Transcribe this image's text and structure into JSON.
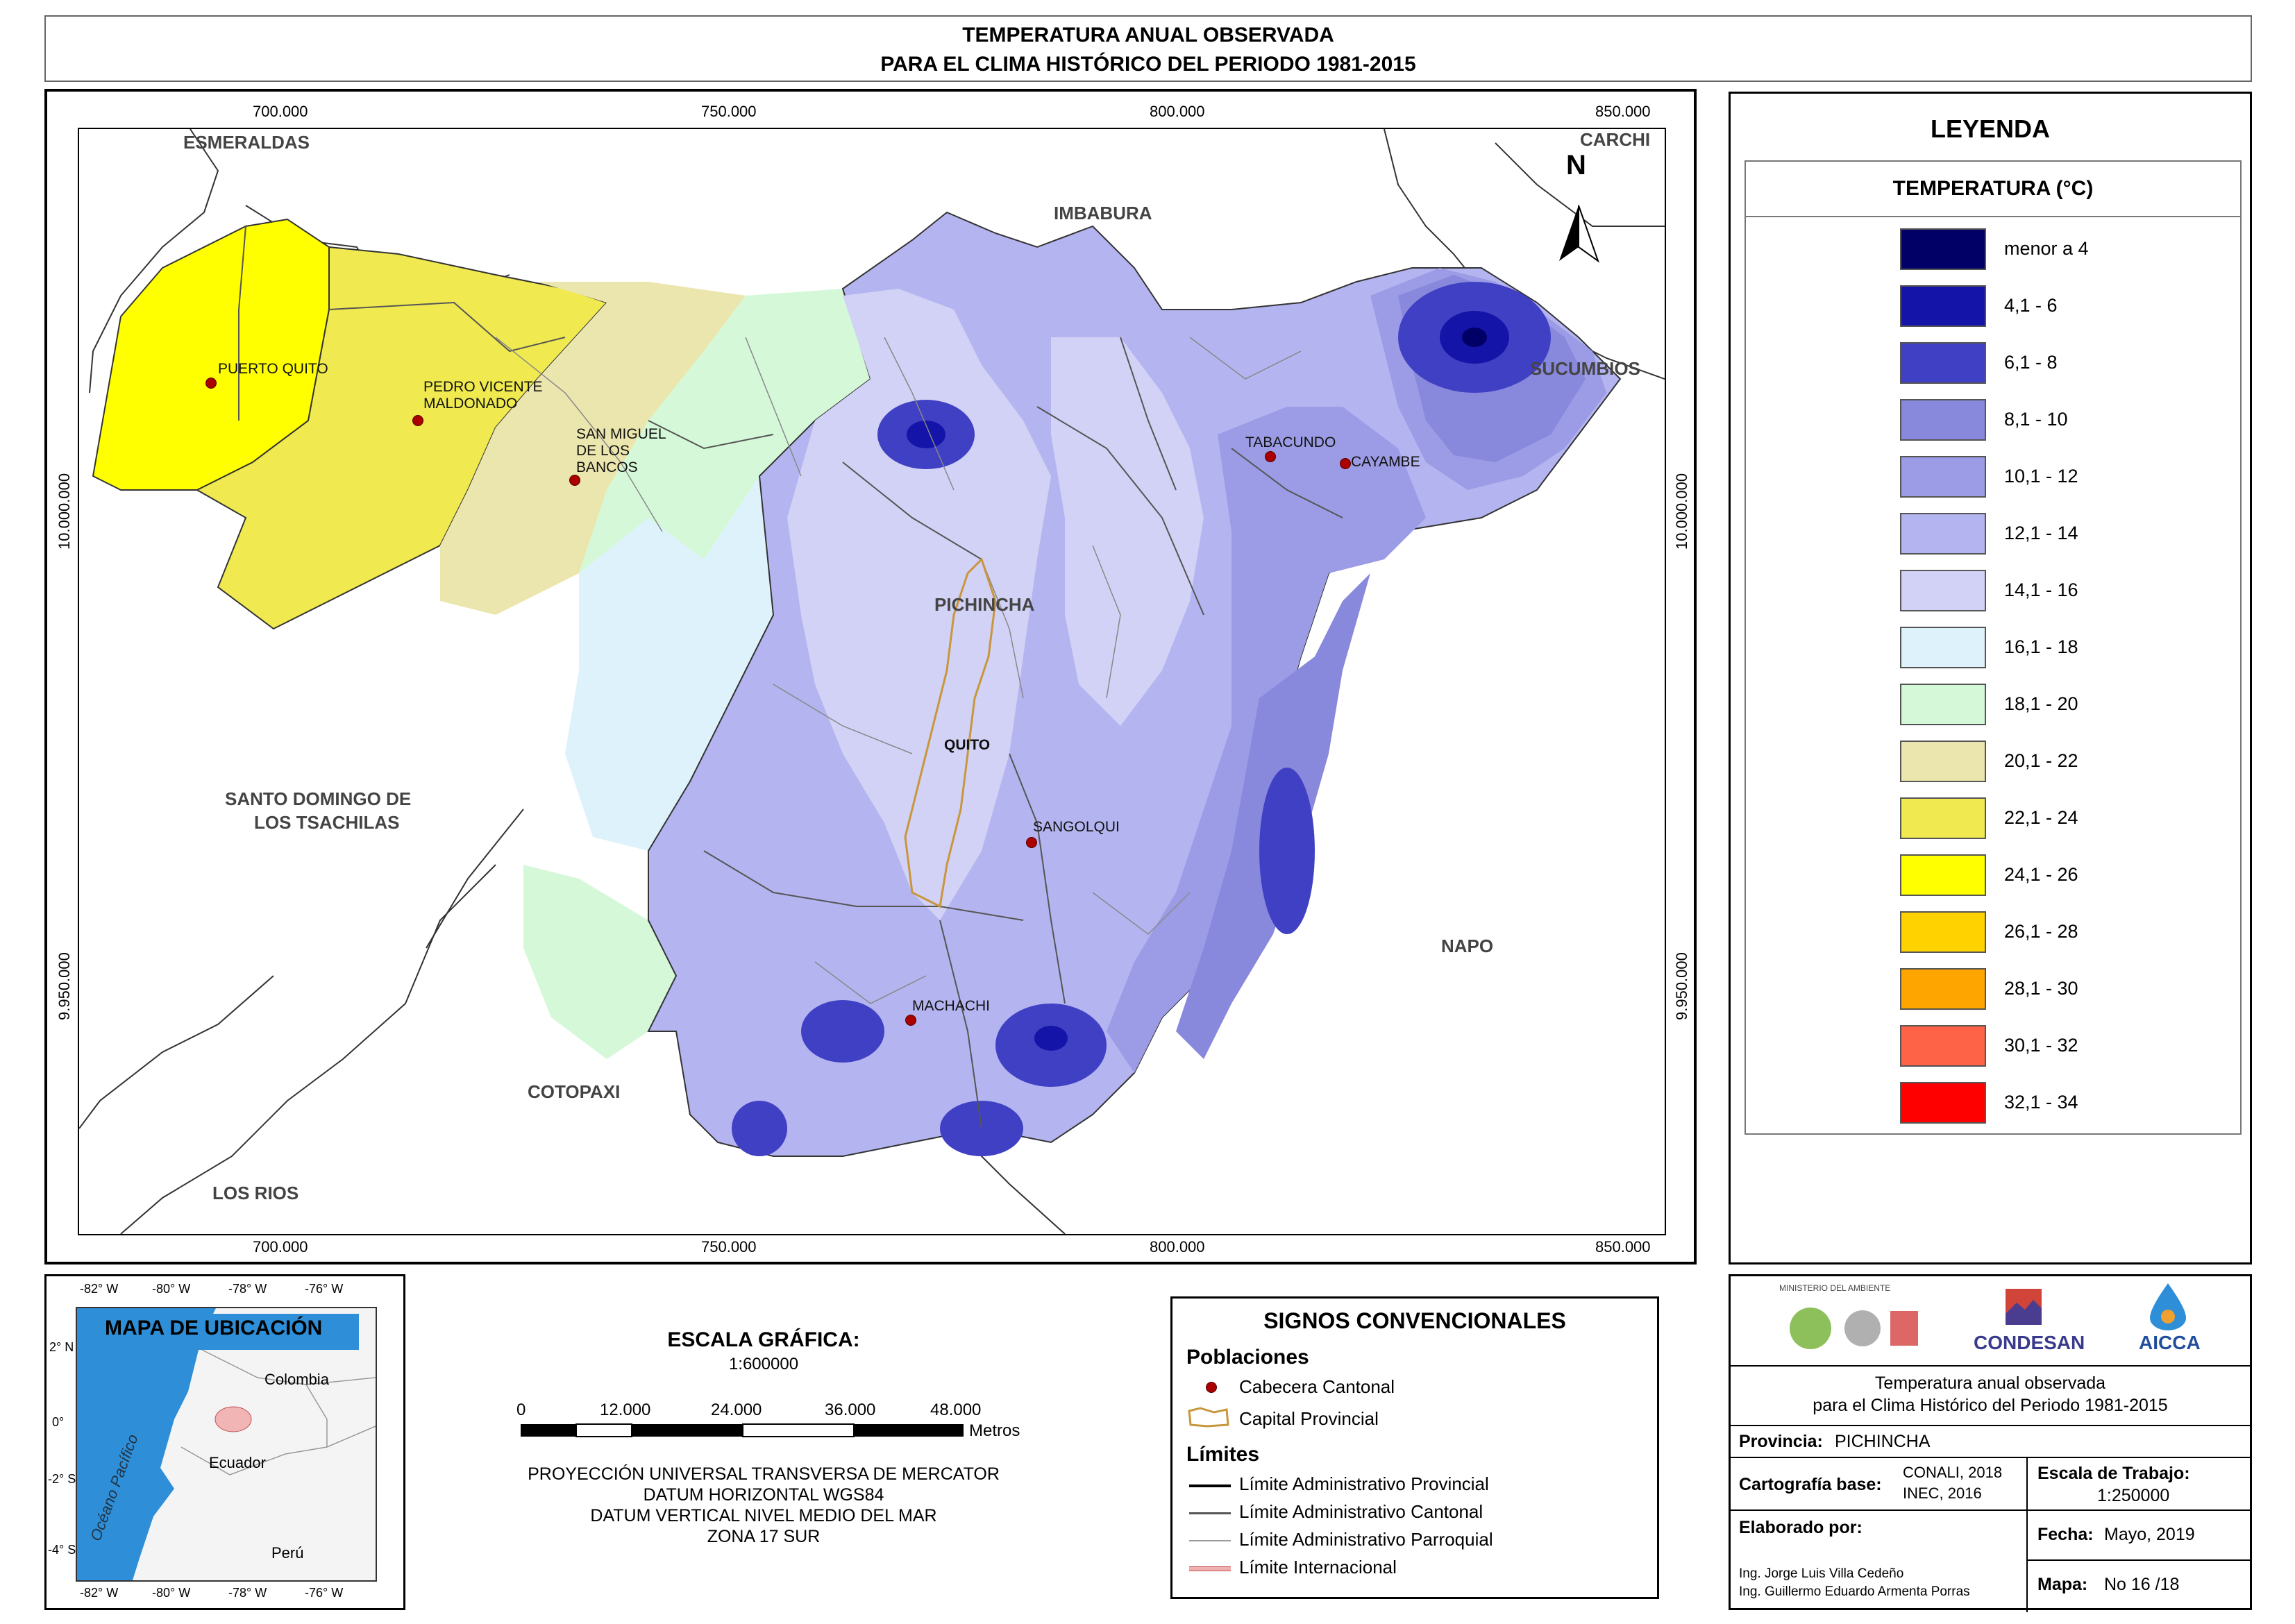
{
  "title": {
    "line1": "TEMPERATURA ANUAL OBSERVADA",
    "line2": "PARA EL CLIMA HISTÓRICO DEL PERIODO 1981-2015"
  },
  "map": {
    "coords_top": [
      "700.000",
      "750.000",
      "800.000",
      "850.000"
    ],
    "coords_bottom": [
      "700.000",
      "750.000",
      "800.000",
      "850.000"
    ],
    "coords_left": [
      "10.000.000",
      "9.950.000"
    ],
    "coords_right": [
      "10.000.000",
      "9.950.000"
    ],
    "north_label": "N",
    "regions": {
      "esmeraldas": "ESMERALDAS",
      "carchi": "CARCHI",
      "imbabura": "IMBABURA",
      "sucumbios": "SUCUMBIOS",
      "pichincha": "PICHINCHA",
      "santo_domingo_1": "SANTO DOMINGO DE",
      "santo_domingo_2": "LOS TSACHILAS",
      "napo": "NAPO",
      "cotopaxi": "COTOPAXI",
      "los_rios": "LOS RIOS"
    },
    "towns": {
      "puerto_quito": "PUERTO QUITO",
      "pedro_vicente_1": "PEDRO VICENTE",
      "pedro_vicente_2": "MALDONADO",
      "san_miguel_1": "SAN MIGUEL",
      "san_miguel_2": "DE LOS",
      "san_miguel_3": "BANCOS",
      "tabacundo": "TABACUNDO",
      "cayambe": "CAYAMBE",
      "quito": "QUITO",
      "sangolqui": "SANGOLQUI",
      "machachi": "MACHACHI"
    }
  },
  "legend": {
    "title": "LEYENDA",
    "subtitle": "TEMPERATURA (°C)",
    "items": [
      {
        "label": "menor a 4",
        "color": "#000066"
      },
      {
        "label": "4,1 - 6",
        "color": "#1414a8"
      },
      {
        "label": "6,1 - 8",
        "color": "#4040c4"
      },
      {
        "label": "8,1 - 10",
        "color": "#8888dc"
      },
      {
        "label": "10,1 - 12",
        "color": "#9c9ce6"
      },
      {
        "label": "12,1 - 14",
        "color": "#b4b4f0"
      },
      {
        "label": "14,1 - 16",
        "color": "#d2d2f6"
      },
      {
        "label": "16,1 - 18",
        "color": "#ddf2fa"
      },
      {
        "label": "18,1 - 20",
        "color": "#d4f8d8"
      },
      {
        "label": "20,1 - 22",
        "color": "#ebe6ad"
      },
      {
        "label": "22,1 - 24",
        "color": "#f0ea50"
      },
      {
        "label": "24,1 - 26",
        "color": "#ffff00"
      },
      {
        "label": "26,1 - 28",
        "color": "#ffd200"
      },
      {
        "label": "28,1 - 30",
        "color": "#ffa500"
      },
      {
        "label": "30,1 - 32",
        "color": "#ff6347"
      },
      {
        "label": "32,1 - 34",
        "color": "#ff0000"
      }
    ]
  },
  "location_map": {
    "title": "MAPA DE UBICACIÓN",
    "top_lon": [
      "-82° W",
      "-80° W",
      "-78° W",
      "-76° W"
    ],
    "bottom_lon": [
      "-82° W",
      "-80° W",
      "-78° W",
      "-76° W"
    ],
    "lat": [
      "2° N",
      "0°",
      "-2° S",
      "-4° S"
    ],
    "ocean": "Océano Pacífico",
    "colombia": "Colombia",
    "ecuador": "Ecuador",
    "peru": "Perú"
  },
  "scale": {
    "title": "ESCALA GRÁFICA:",
    "ratio": "1:600000",
    "ticks": [
      "0",
      "12.000",
      "24.000",
      "36.000",
      "48.000"
    ],
    "unit": "Metros",
    "proj1": "PROYECCIÓN UNIVERSAL TRANSVERSA DE MERCATOR",
    "proj2": "DATUM HORIZONTAL WGS84",
    "proj3": "DATUM VERTICAL NIVEL MEDIO DEL MAR",
    "proj4": "ZONA 17 SUR"
  },
  "signs": {
    "title": "SIGNOS CONVENCIONALES",
    "poblaciones": "Poblaciones",
    "cabecera": "Cabecera Cantonal",
    "capital": "Capital Provincial",
    "limites": "Límites",
    "lim_prov": "Límite Administrativo Provincial",
    "lim_cant": "Límite Administrativo Cantonal",
    "lim_parr": "Límite Administrativo Parroquial",
    "lim_int": "Límite Internacional"
  },
  "info": {
    "logo1": "MINISTERIO DEL AMBIENTE",
    "logo2": "CONDESAN",
    "logo3": "AICCA",
    "desc1": "Temperatura anual observada",
    "desc2": "para el Clima Histórico del Periodo 1981-2015",
    "provincia_lbl": "Provincia:",
    "provincia_val": "PICHINCHA",
    "cartografia_lbl": "Cartografía base:",
    "cartografia_val1": "CONALI, 2018",
    "cartografia_val2": "INEC, 2016",
    "escala_lbl": "Escala de Trabajo:",
    "escala_val": "1:250000",
    "elaborado_lbl": "Elaborado por:",
    "autor1": "Ing. Jorge Luis Villa Cedeño",
    "autor2": "Ing. Guillermo Eduardo Armenta Porras",
    "fecha_lbl": "Fecha:",
    "fecha_val": "Mayo, 2019",
    "mapa_lbl": "Mapa:",
    "mapa_val": "No 16 /18"
  }
}
